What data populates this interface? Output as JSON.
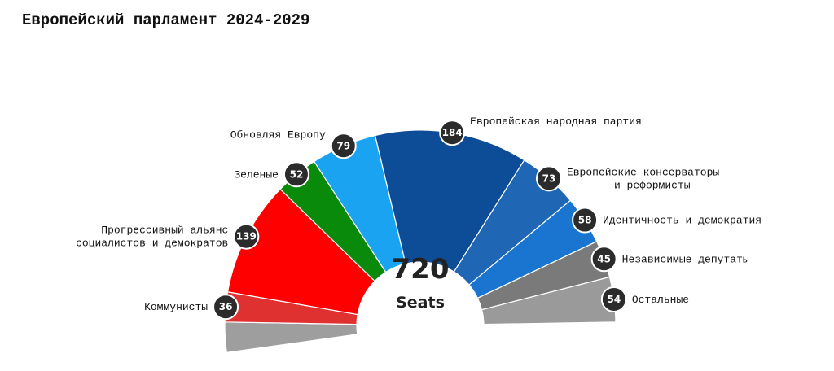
{
  "chart_data": {
    "type": "pie",
    "subtype": "semicircle-parliament",
    "title": "Европейский парламент 2024-2029",
    "total": {
      "value": "720",
      "label": "Seats"
    },
    "slices": [
      {
        "label": "Коммунисты",
        "value": 36,
        "color": "#e03131"
      },
      {
        "label": "Прогрессивный альянс\nсоциалистов и демократов",
        "value": 139,
        "color": "#ff0000",
        "label_color": "#e00000"
      },
      {
        "label": "Зеленые",
        "value": 52,
        "color": "#0a8a0a"
      },
      {
        "label": "Обновляя Европу",
        "value": 79,
        "color": "#1aa3f0"
      },
      {
        "label": "Европейская народная партия",
        "value": 184,
        "color": "#0d4c96"
      },
      {
        "label": "Европейские консерваторы\nи реформисты",
        "value": 73,
        "color": "#1f66b4"
      },
      {
        "label": "Идентичность и демократия",
        "value": 58,
        "color": "#1a75d1"
      },
      {
        "label": "Независимые депутаты",
        "value": 45,
        "color": "#7a7a7a"
      },
      {
        "label": "Остальные",
        "value": 54,
        "color": "#9a9a9a"
      }
    ],
    "unlabeled_slice_color": "#9e9e9e"
  }
}
